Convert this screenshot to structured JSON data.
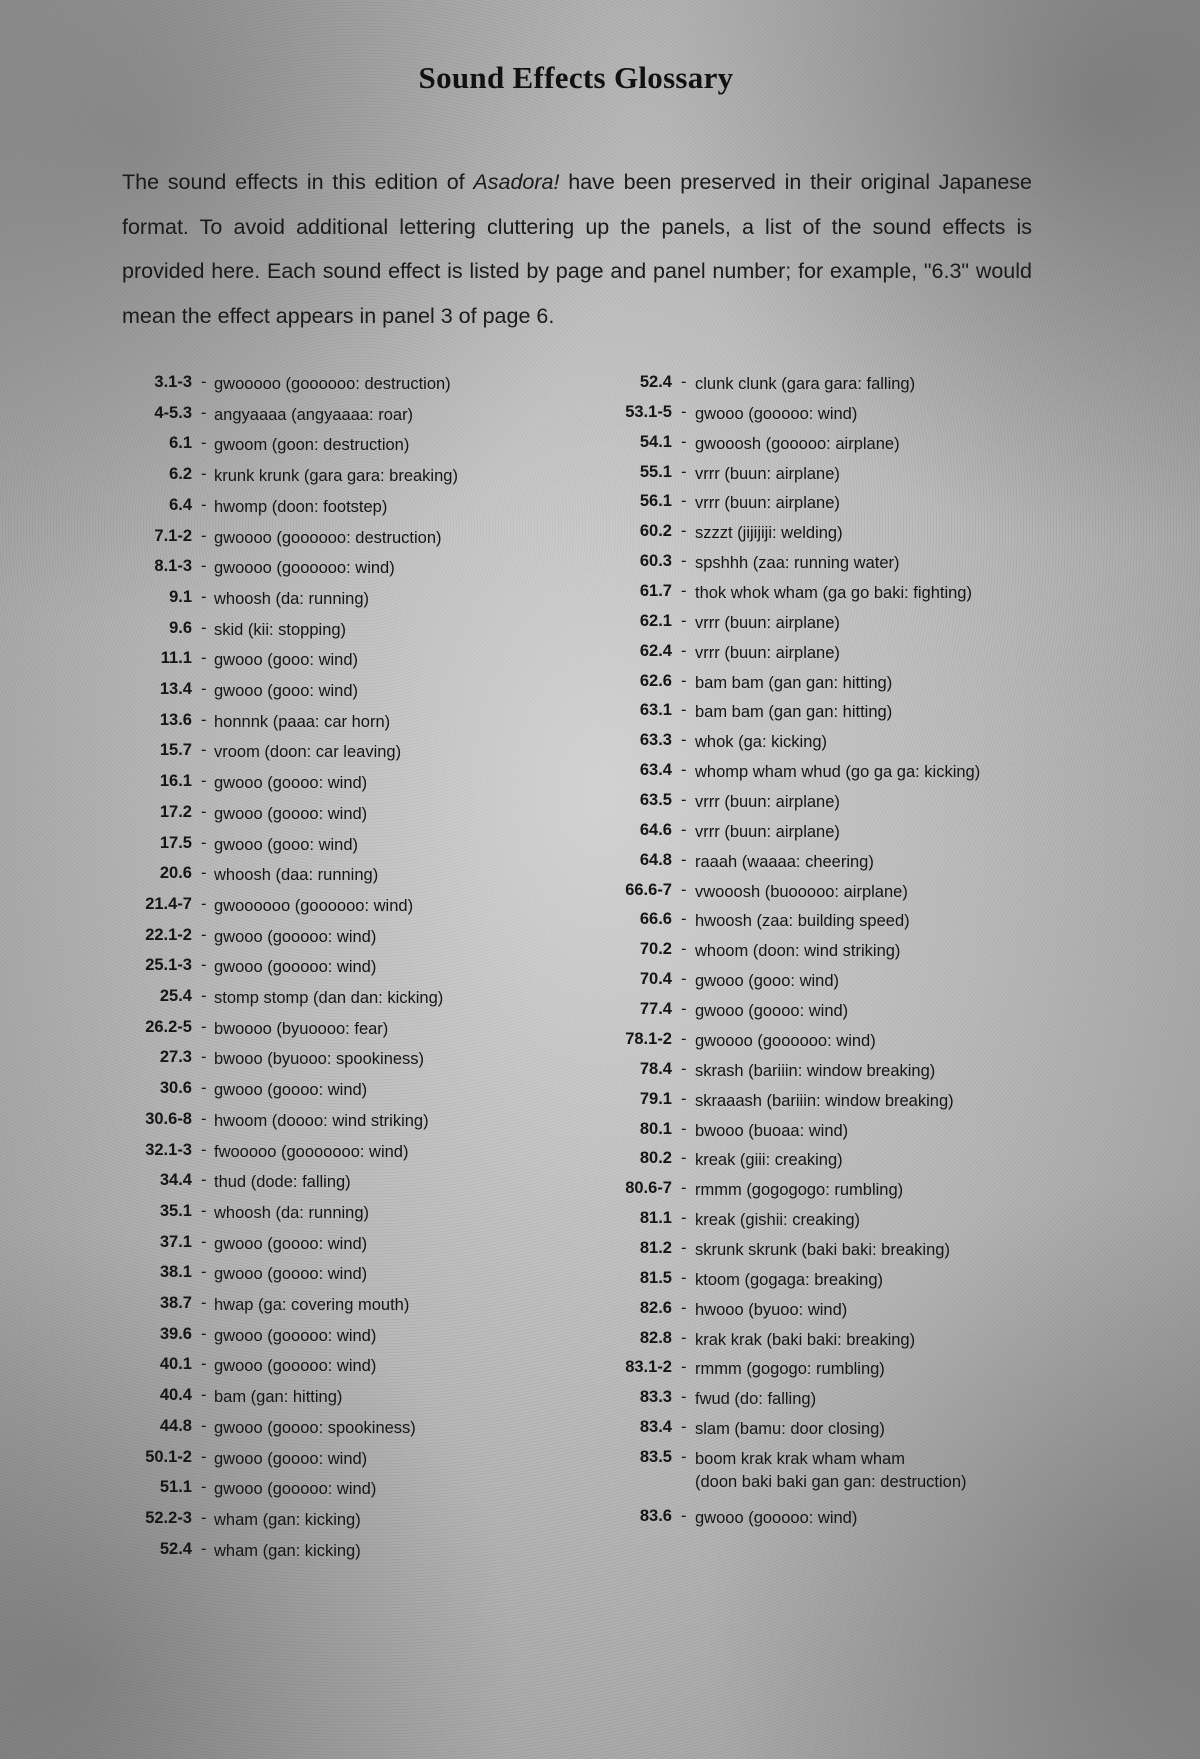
{
  "title": "Sound Effects Glossary",
  "intro": {
    "before": "The sound effects in this edition of ",
    "series_title": "Asadora!",
    "after": " have been preserved in their original Japanese format. To avoid additional lettering cluttering up the panels, a list of the sound effects is provided here. Each sound effect is listed by page and panel number; for example, \"6.3\" would mean the effect appears in panel 3 of page 6."
  },
  "separator": "-",
  "left_column": [
    {
      "code": "3.1-3",
      "text": "gwooooo (goooooo: destruction)"
    },
    {
      "code": "4-5.3",
      "text": "angyaaaa (angyaaaa: roar)"
    },
    {
      "code": "6.1",
      "text": "gwoom (goon: destruction)"
    },
    {
      "code": "6.2",
      "text": "krunk krunk (gara gara: breaking)"
    },
    {
      "code": "6.4",
      "text": "hwomp (doon: footstep)"
    },
    {
      "code": "7.1-2",
      "text": "gwoooo (goooooo: destruction)"
    },
    {
      "code": "8.1-3",
      "text": "gwoooo (goooooo: wind)"
    },
    {
      "code": "9.1",
      "text": "whoosh (da: running)"
    },
    {
      "code": "9.6",
      "text": "skid (kii: stopping)"
    },
    {
      "code": "11.1",
      "text": "gwooo (gooo: wind)"
    },
    {
      "code": "13.4",
      "text": "gwooo (gooo: wind)"
    },
    {
      "code": "13.6",
      "text": "honnnk (paaa: car horn)"
    },
    {
      "code": "15.7",
      "text": "vroom (doon: car leaving)"
    },
    {
      "code": "16.1",
      "text": "gwooo (goooo: wind)"
    },
    {
      "code": "17.2",
      "text": "gwooo (goooo: wind)"
    },
    {
      "code": "17.5",
      "text": "gwooo (gooo: wind)"
    },
    {
      "code": "20.6",
      "text": "whoosh (daa: running)"
    },
    {
      "code": "21.4-7",
      "text": "gwoooooo (goooooo: wind)"
    },
    {
      "code": "22.1-2",
      "text": "gwooo (gooooo: wind)"
    },
    {
      "code": "25.1-3",
      "text": "gwooo (gooooo: wind)"
    },
    {
      "code": "25.4",
      "text": "stomp stomp (dan dan: kicking)"
    },
    {
      "code": "26.2-5",
      "text": "bwoooo (byuoooo: fear)"
    },
    {
      "code": "27.3",
      "text": "bwooo (byuooo: spookiness)"
    },
    {
      "code": "30.6",
      "text": "gwooo (goooo: wind)"
    },
    {
      "code": "30.6-8",
      "text": "hwoom (doooo: wind striking)"
    },
    {
      "code": "32.1-3",
      "text": "fwooooo (gooooooo: wind)"
    },
    {
      "code": "34.4",
      "text": "thud (dode: falling)"
    },
    {
      "code": "35.1",
      "text": "whoosh (da: running)"
    },
    {
      "code": "37.1",
      "text": "gwooo (goooo: wind)"
    },
    {
      "code": "38.1",
      "text": "gwooo (goooo: wind)"
    },
    {
      "code": "38.7",
      "text": "hwap (ga: covering mouth)"
    },
    {
      "code": "39.6",
      "text": "gwooo (gooooo: wind)"
    },
    {
      "code": "40.1",
      "text": "gwooo (gooooo: wind)"
    },
    {
      "code": "40.4",
      "text": "bam (gan: hitting)"
    },
    {
      "code": "44.8",
      "text": "gwooo (goooo: spookiness)"
    },
    {
      "code": "50.1-2",
      "text": "gwooo (goooo: wind)"
    },
    {
      "code": "51.1",
      "text": "gwooo (gooooo: wind)"
    },
    {
      "code": "52.2-3",
      "text": "wham (gan: kicking)"
    },
    {
      "code": "52.4",
      "text": "wham (gan: kicking)"
    }
  ],
  "right_column": [
    {
      "code": "52.4",
      "text": "clunk clunk (gara gara: falling)"
    },
    {
      "code": "53.1-5",
      "text": "gwooo (gooooo: wind)"
    },
    {
      "code": "54.1",
      "text": "gwooosh (gooooo: airplane)"
    },
    {
      "code": "55.1",
      "text": "vrrr (buun: airplane)"
    },
    {
      "code": "56.1",
      "text": "vrrr (buun: airplane)"
    },
    {
      "code": "60.2",
      "text": "szzzt (jijijiji: welding)"
    },
    {
      "code": "60.3",
      "text": "spshhh (zaa: running water)"
    },
    {
      "code": "61.7",
      "text": "thok whok wham (ga go baki: fighting)"
    },
    {
      "code": "62.1",
      "text": "vrrr (buun: airplane)"
    },
    {
      "code": "62.4",
      "text": "vrrr (buun: airplane)"
    },
    {
      "code": "62.6",
      "text": "bam bam (gan gan: hitting)"
    },
    {
      "code": "63.1",
      "text": "bam bam (gan gan: hitting)"
    },
    {
      "code": "63.3",
      "text": "whok (ga: kicking)"
    },
    {
      "code": "63.4",
      "text": "whomp wham whud (go ga ga: kicking)"
    },
    {
      "code": "63.5",
      "text": "vrrr (buun: airplane)"
    },
    {
      "code": "64.6",
      "text": "vrrr (buun: airplane)"
    },
    {
      "code": "64.8",
      "text": "raaah (waaaa: cheering)"
    },
    {
      "code": "66.6-7",
      "text": "vwooosh (buooooo: airplane)"
    },
    {
      "code": "66.6",
      "text": "hwoosh (zaa: building speed)"
    },
    {
      "code": "70.2",
      "text": "whoom (doon: wind striking)"
    },
    {
      "code": "70.4",
      "text": "gwooo (gooo: wind)"
    },
    {
      "code": "77.4",
      "text": "gwooo (goooo: wind)"
    },
    {
      "code": "78.1-2",
      "text": "gwoooo (goooooo: wind)"
    },
    {
      "code": "78.4",
      "text": "skrash (bariiin: window breaking)"
    },
    {
      "code": "79.1",
      "text": "skraaash (bariiin: window breaking)"
    },
    {
      "code": "80.1",
      "text": "bwooo (buoaa: wind)"
    },
    {
      "code": "80.2",
      "text": "kreak (giii: creaking)"
    },
    {
      "code": "80.6-7",
      "text": "rmmm (gogogogo: rumbling)"
    },
    {
      "code": "81.1",
      "text": "kreak (gishii: creaking)"
    },
    {
      "code": "81.2",
      "text": "skrunk skrunk (baki baki: breaking)"
    },
    {
      "code": "81.5",
      "text": "ktoom (gogaga: breaking)"
    },
    {
      "code": "82.6",
      "text": "hwooo (byuoo: wind)"
    },
    {
      "code": "82.8",
      "text": "krak krak (baki baki: breaking)"
    },
    {
      "code": "83.1-2",
      "text": "rmmm (gogogo: rumbling)"
    },
    {
      "code": "83.3",
      "text": "fwud (do: falling)"
    },
    {
      "code": "83.4",
      "text": "slam (bamu: door closing)"
    },
    {
      "code": "83.5",
      "text": "boom krak krak wham wham",
      "text2": "(doon baki baki gan gan: destruction)"
    },
    {
      "code": "83.6",
      "text": "gwooo (gooooo: wind)"
    }
  ]
}
